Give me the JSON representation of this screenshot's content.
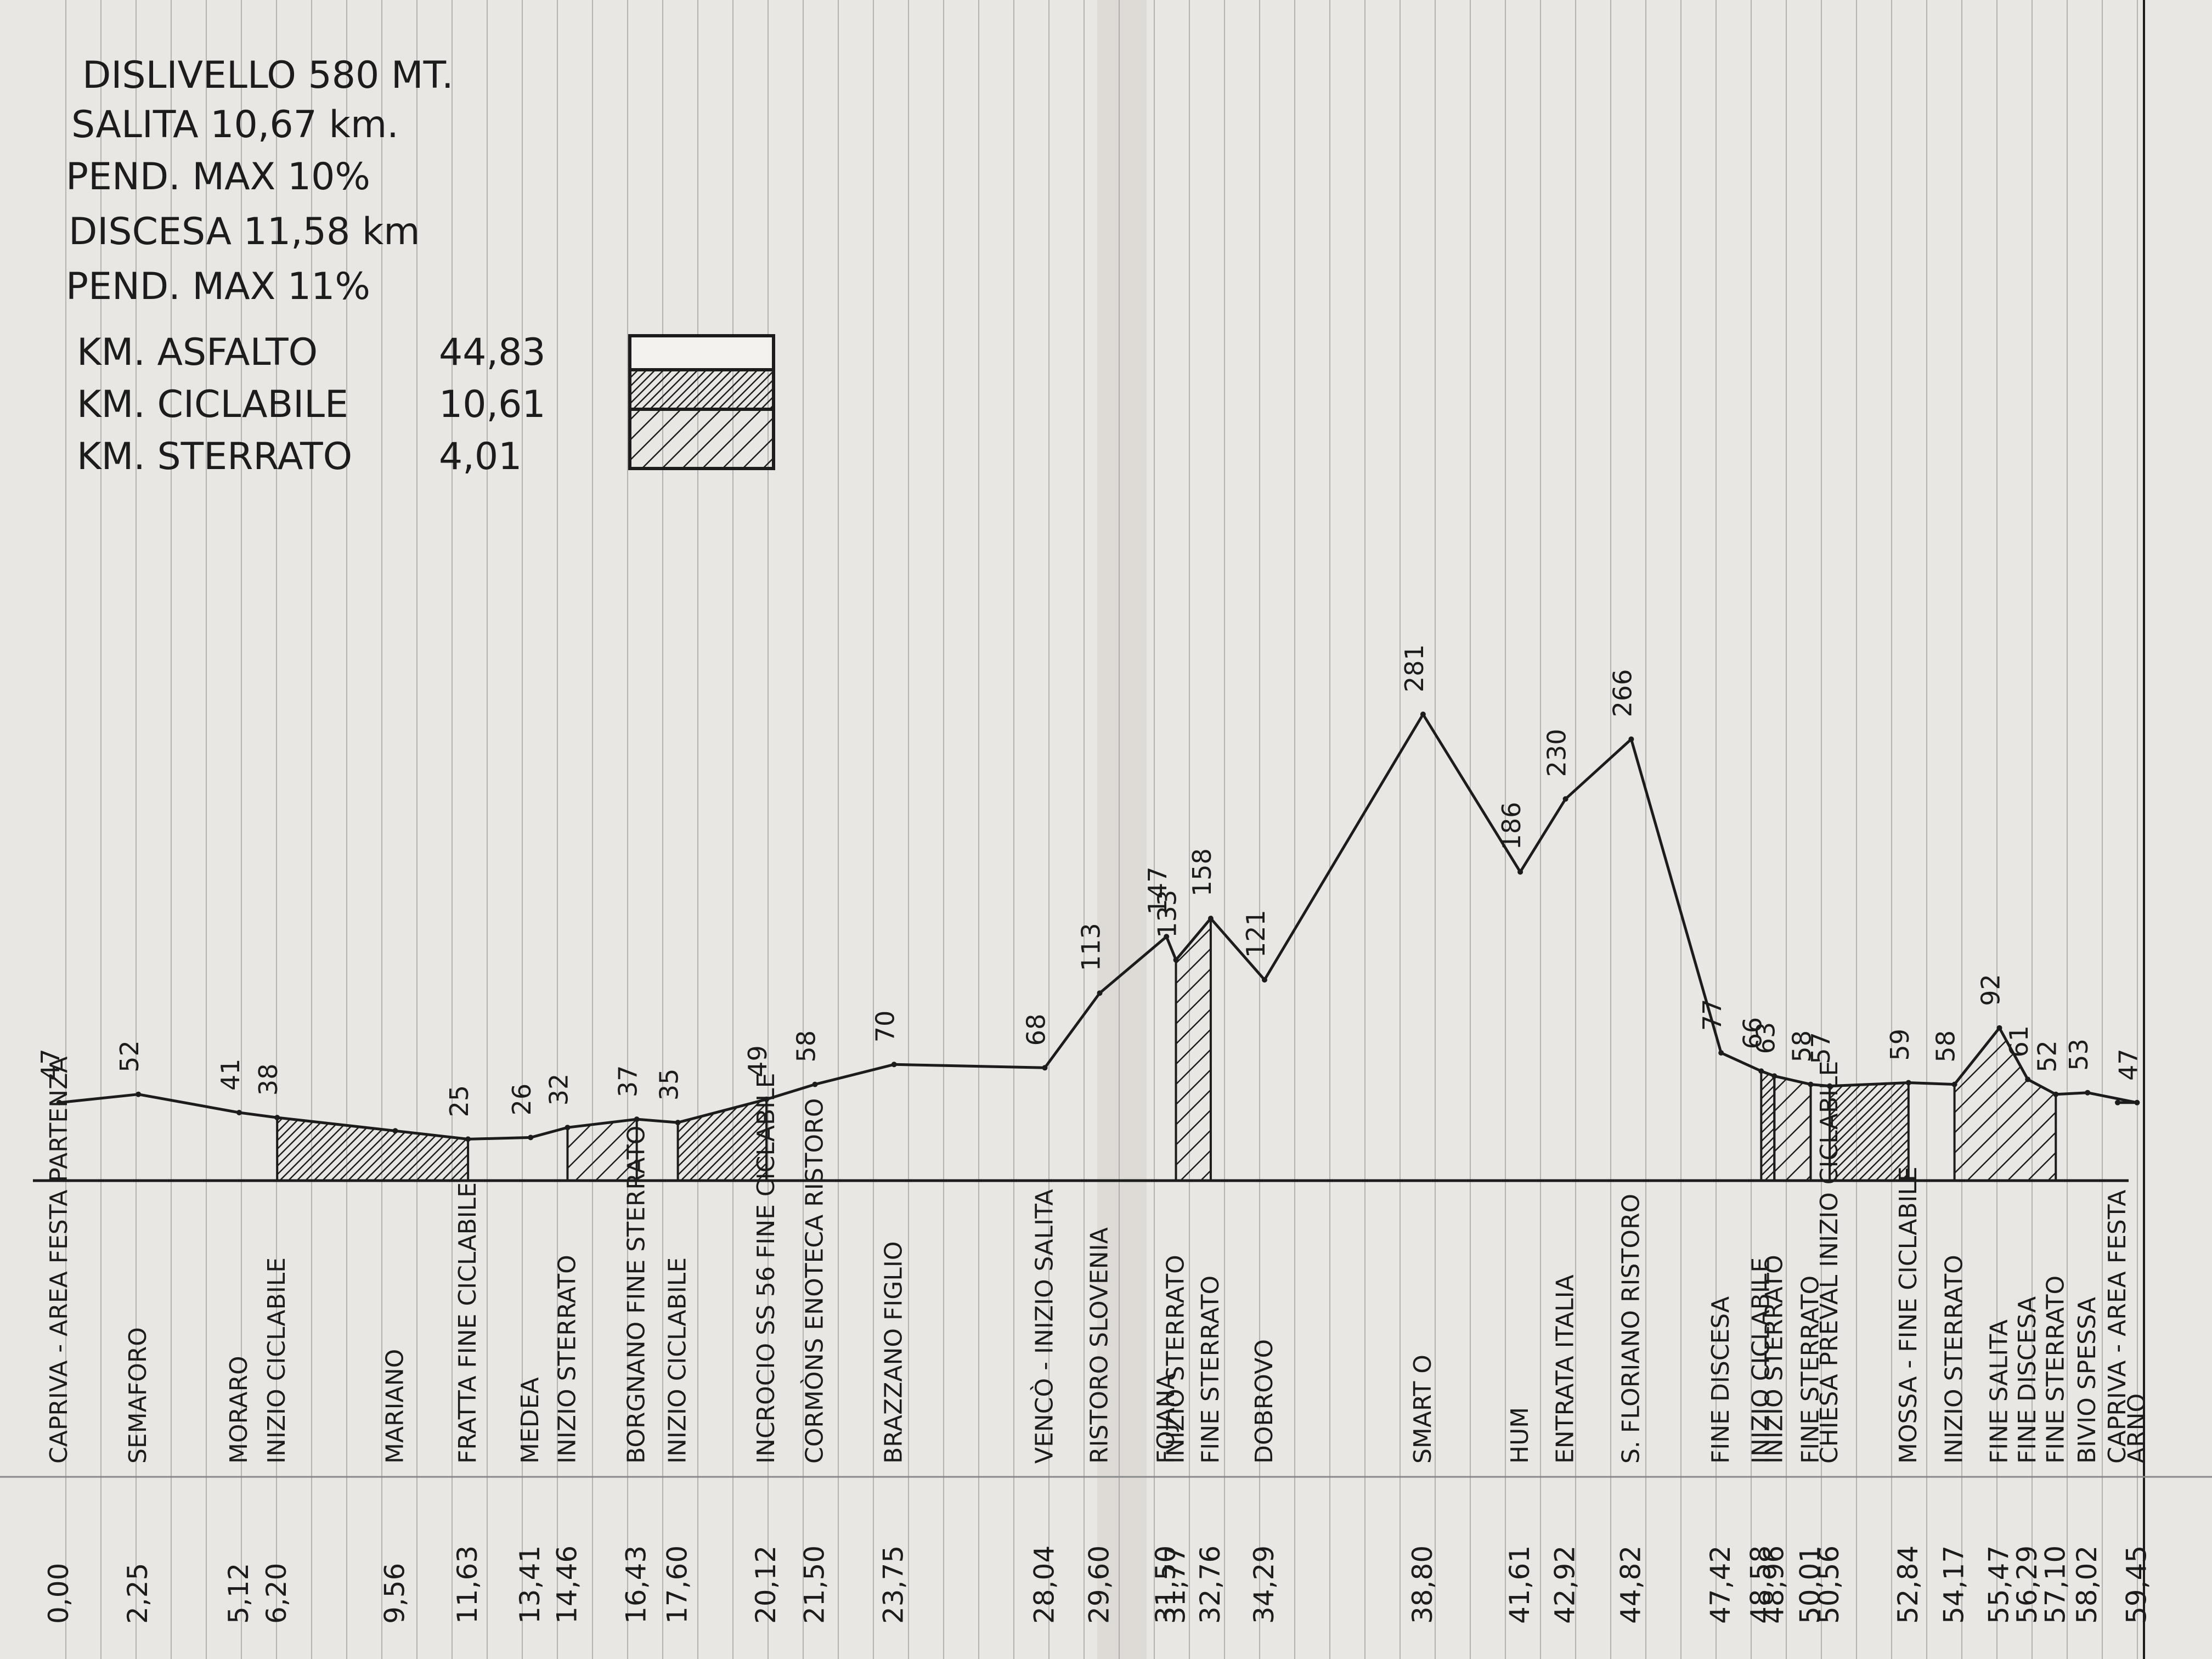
{
  "info": {
    "dislivello": "DISLIVELLO 580 MT.",
    "salita": "SALITA 10,67 km.",
    "pend_max_salita": "PEND. MAX 10%",
    "discesa": "DISCESA 11,58 km",
    "pend_max_discesa": "PEND. MAX 11%"
  },
  "legend": [
    {
      "label": "KM. ASFALTO",
      "value": "44,83",
      "pattern": "plain"
    },
    {
      "label": "KM. CICLABILE",
      "value": "10,61",
      "pattern": "dense"
    },
    {
      "label": "KM. STERRATO",
      "value": "4,01",
      "pattern": "hatch"
    }
  ],
  "colors": {
    "paper": "#e9e7e3",
    "ink": "#1c1c1c",
    "rule": "#8a8a8a"
  },
  "chart_data": {
    "type": "area",
    "title": "",
    "xlabel": "",
    "ylabel": "",
    "ylim": [
      0,
      300
    ],
    "grid": true,
    "legend_position": "top-left",
    "points": [
      {
        "km": "0,00",
        "x": 0.0,
        "y": 47,
        "label": "CAPRIVA - AREA FESTA PARTENZA",
        "elev": "47"
      },
      {
        "km": "2,25",
        "x": 2.25,
        "y": 52,
        "label": "SEMAFORO",
        "elev": "52"
      },
      {
        "km": "5,12",
        "x": 5.12,
        "y": 41,
        "label": "MORARO",
        "elev": "41"
      },
      {
        "km": "6,20",
        "x": 6.2,
        "y": 38,
        "label": "INIZIO CICLABILE",
        "elev": "38"
      },
      {
        "km": "9,56",
        "x": 9.56,
        "y": 30,
        "label": "MARIANO",
        "elev": ""
      },
      {
        "km": "11,63",
        "x": 11.63,
        "y": 25,
        "label": "FRATTA FINE CICLABILE",
        "elev": "25"
      },
      {
        "km": "13,41",
        "x": 13.41,
        "y": 26,
        "label": "MEDEA",
        "elev": "26"
      },
      {
        "km": "14,46",
        "x": 14.46,
        "y": 32,
        "label": "INIZIO STERRATO",
        "elev": "32"
      },
      {
        "km": "16,43",
        "x": 16.43,
        "y": 37,
        "label": "BORGNANO FINE STERRATO",
        "elev": "37"
      },
      {
        "km": "17,60",
        "x": 17.6,
        "y": 35,
        "label": "INIZIO CICLABILE",
        "elev": "35"
      },
      {
        "km": "20,12",
        "x": 20.12,
        "y": 49,
        "label": "INCROCIO SS 56 FINE CICLABILE",
        "elev": "49"
      },
      {
        "km": "21,50",
        "x": 21.5,
        "y": 58,
        "label": "CORMÒNS ENOTECA RISTORO",
        "elev": "58"
      },
      {
        "km": "23,75",
        "x": 23.75,
        "y": 70,
        "label": "BRAZZANO FIGLIO",
        "elev": "70"
      },
      {
        "km": "28,04",
        "x": 28.04,
        "y": 68,
        "label": "VENCÒ - INIZIO SALITA",
        "elev": "68"
      },
      {
        "km": "29,60",
        "x": 29.6,
        "y": 113,
        "label": "RISTORO SLOVENIA",
        "elev": "113"
      },
      {
        "km": "31,50",
        "x": 31.5,
        "y": 147,
        "label": "FOJANA",
        "elev": "147"
      },
      {
        "km": "31,77",
        "x": 31.77,
        "y": 133,
        "label": "INIZIO STERRATO",
        "elev": "133"
      },
      {
        "km": "32,76",
        "x": 32.76,
        "y": 158,
        "label": "FINE STERRATO",
        "elev": "158"
      },
      {
        "km": "34,29",
        "x": 34.29,
        "y": 121,
        "label": "DOBROVO",
        "elev": "121"
      },
      {
        "km": "38,80",
        "x": 38.8,
        "y": 281,
        "label": "SMART O",
        "elev": "281"
      },
      {
        "km": "41,61",
        "x": 41.61,
        "y": 186,
        "label": "HUM",
        "elev": "186"
      },
      {
        "km": "42,92",
        "x": 42.92,
        "y": 230,
        "label": "ENTRATA ITALIA",
        "elev": "230"
      },
      {
        "km": "44,82",
        "x": 44.82,
        "y": 266,
        "label": "S. FLORIANO RISTORO",
        "elev": "266"
      },
      {
        "km": "47,42",
        "x": 47.42,
        "y": 77,
        "label": "FINE DISCESA",
        "elev": "77"
      },
      {
        "km": "48,58",
        "x": 48.58,
        "y": 66,
        "label": "INIZIO CICLABILE",
        "elev": "66"
      },
      {
        "km": "48,96",
        "x": 48.96,
        "y": 63,
        "label": "INIZIO STERRATO",
        "elev": "63"
      },
      {
        "km": "50,01",
        "x": 50.01,
        "y": 58,
        "label": "FINE STERRATO",
        "elev": "58"
      },
      {
        "km": "50,56",
        "x": 50.56,
        "y": 57,
        "label": "CHIESA PREVAL INIZIO CICLABILE",
        "elev": "57"
      },
      {
        "km": "52,84",
        "x": 52.84,
        "y": 59,
        "label": "MOSSA - FINE CICLABILE",
        "elev": "59"
      },
      {
        "km": "54,17",
        "x": 54.17,
        "y": 58,
        "label": "INIZIO STERRATO",
        "elev": "58"
      },
      {
        "km": "55,47",
        "x": 55.47,
        "y": 92,
        "label": "FINE SALITA",
        "elev": "92"
      },
      {
        "km": "56,29",
        "x": 56.29,
        "y": 61,
        "label": "FINE DISCESA",
        "elev": "61"
      },
      {
        "km": "57,10",
        "x": 57.1,
        "y": 52,
        "label": "FINE STERRATO",
        "elev": "52"
      },
      {
        "km": "58,02",
        "x": 58.02,
        "y": 53,
        "label": "BIVIO SPESSA",
        "elev": "53"
      },
      {
        "km": "59,45",
        "x": 59.45,
        "y": 47,
        "label": "ARNO",
        "elev": "47"
      },
      {
        "km": "",
        "x": 60.2,
        "y": 47,
        "label": "CAPRIVA - AREA FESTA",
        "elev": ""
      }
    ],
    "surfaces": [
      {
        "type": "ciclabile",
        "from_km": 6.2,
        "to_km": 11.63
      },
      {
        "type": "sterrato",
        "from_km": 14.46,
        "to_km": 16.43
      },
      {
        "type": "ciclabile",
        "from_km": 17.6,
        "to_km": 20.12
      },
      {
        "type": "sterrato",
        "from_km": 31.77,
        "to_km": 32.76
      },
      {
        "type": "ciclabile",
        "from_km": 48.58,
        "to_km": 48.96
      },
      {
        "type": "sterrato",
        "from_km": 48.96,
        "to_km": 50.01
      },
      {
        "type": "ciclabile",
        "from_km": 50.56,
        "to_km": 52.84
      },
      {
        "type": "sterrato",
        "from_km": 54.17,
        "to_km": 57.1
      }
    ]
  }
}
